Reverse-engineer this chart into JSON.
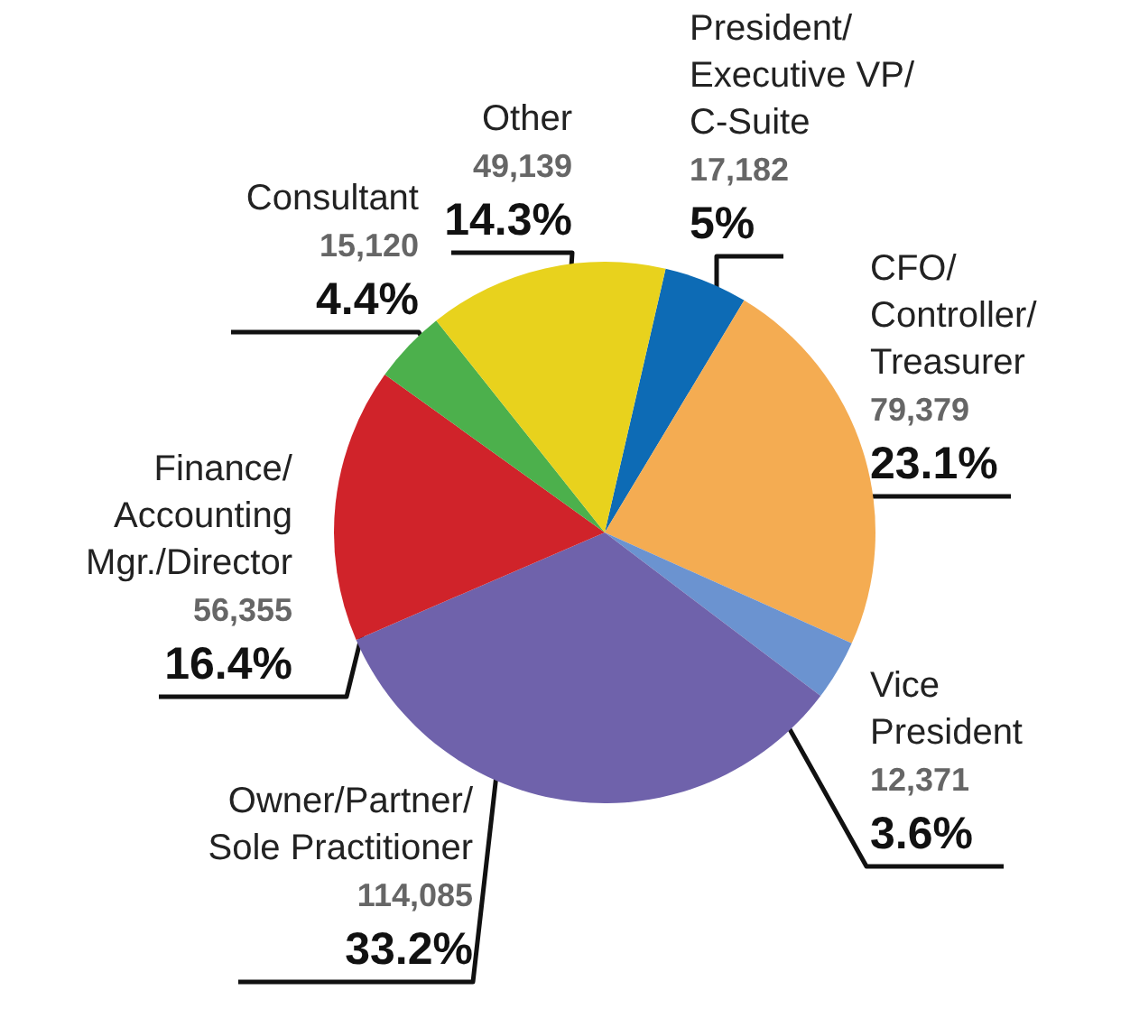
{
  "chart_data": {
    "type": "pie",
    "categories": [
      "President/\nExecutive VP/\nC-Suite",
      "CFO/\nController/\nTreasurer",
      "Vice\nPresident",
      "Owner/Partner/\nSole Practitioner",
      "Finance/\nAccounting\nMgr./Director",
      "Consultant",
      "Other"
    ],
    "values": [
      17182,
      79379,
      12371,
      114085,
      56355,
      15120,
      49139
    ],
    "value_labels": [
      "17,182\n5%",
      "79,379\n23.1%",
      "12,371\n3.6%",
      "114,085\n33.2%",
      "56,355\n16.4%",
      "15,120\n4.4%",
      "49,139\n14.3%"
    ],
    "colors": [
      "#0d6bb5",
      "#f4ac52",
      "#6b93d0",
      "#6f62ab",
      "#d0232a",
      "#4cb04c",
      "#e8d21d"
    ],
    "data_labels": true
  }
}
